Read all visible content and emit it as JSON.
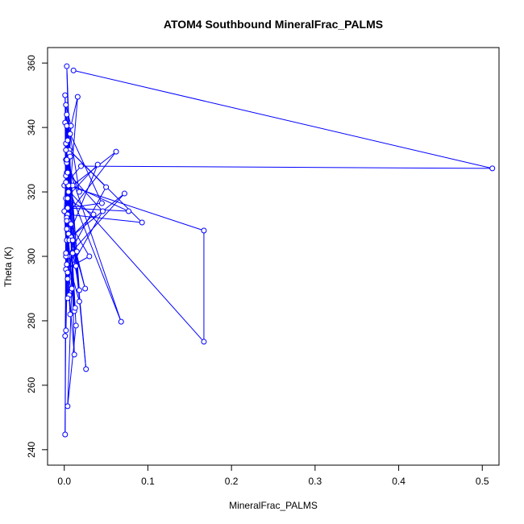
{
  "colors": {
    "series": "#0000ff",
    "axis": "#000000",
    "background": "#ffffff"
  },
  "chart_data": {
    "type": "line",
    "title": "ATOM4 Southbound MineralFrac_PALMS",
    "xlabel": "MineralFrac_PALMS",
    "ylabel": "Theta (K)",
    "xlim": [
      0,
      0.5
    ],
    "ylim": [
      240,
      360
    ],
    "xticks": [
      "0.0",
      "0.1",
      "0.2",
      "0.3",
      "0.4",
      "0.5"
    ],
    "xtick_values": [
      0,
      0.1,
      0.2,
      0.3,
      0.4,
      0.5
    ],
    "yticks": [
      "240",
      "260",
      "280",
      "300",
      "320",
      "340",
      "360"
    ],
    "ytick_values": [
      240,
      260,
      280,
      300,
      320,
      340,
      360
    ],
    "grid": false,
    "markers": "open-circle",
    "series": [
      {
        "x": [
          0.011,
          0.512,
          0.02,
          0.0,
          0.167,
          0.167,
          0.004,
          0.068,
          0.002,
          0.018,
          0.007,
          0.045,
          0.003,
          0.077,
          0.01,
          0.062,
          0.004,
          0.093,
          0.006,
          0.05,
          0.004,
          0.072,
          0.003,
          0.04,
          0.002,
          0.035,
          0.008,
          0.025,
          0.005,
          0.03,
          0.002,
          0.015,
          0.001,
          0.012,
          0.003,
          0.018,
          0.006,
          0.01,
          0.004,
          0.008,
          0.002,
          0.003,
          0.004,
          0.007,
          0.003,
          0.012,
          0.006,
          0.003,
          0.001,
          0.002,
          0.004,
          0.003,
          0.001,
          0.002,
          0.026,
          0.005,
          0.014,
          0.004,
          0.009,
          0.003,
          0.005,
          0.002,
          0.006,
          0.003,
          0.001,
          0.004,
          0.002,
          0.0,
          0.007,
          0.003,
          0.016,
          0.004,
          0.002,
          0.005,
          0.008,
          0.003,
          0.014,
          0.002,
          0.01,
          0.004,
          0.003,
          0.013,
          0.004,
          0.046,
          0.004,
          0.002,
          0.018
        ],
        "y": [
          357.7,
          327.3,
          328.0,
          322.0,
          273.5,
          308.0,
          322.0,
          279.7,
          330.0,
          320.0,
          338.0,
          316.5,
          315.0,
          314.0,
          322.0,
          332.5,
          313.0,
          310.5,
          333.0,
          321.5,
          300.0,
          319.5,
          305.0,
          328.5,
          318.0,
          313.0,
          306.0,
          290.0,
          311.0,
          300.0,
          296.0,
          301.5,
          341.5,
          283.0,
          312.0,
          289.5,
          332.0,
          301.0,
          318.0,
          340.5,
          347.0,
          329.0,
          293.0,
          331.0,
          359.0,
          269.5,
          288.0,
          326.0,
          350.0,
          277.0,
          300.0,
          340.5,
          244.7,
          335.0,
          265.0,
          322.0,
          278.5,
          253.5,
          290.0,
          311.0,
          307.0,
          333.0,
          305.0,
          297.5,
          275.3,
          315.0,
          325.0,
          314.0,
          282.0,
          308.5,
          349.5,
          336.0,
          300.0,
          320.0,
          310.0,
          344.0,
          297.0,
          323.0,
          305.0,
          287.0,
          330.0,
          284.0,
          295.0,
          314.0,
          326.0,
          301.0,
          286.0
        ]
      }
    ]
  }
}
